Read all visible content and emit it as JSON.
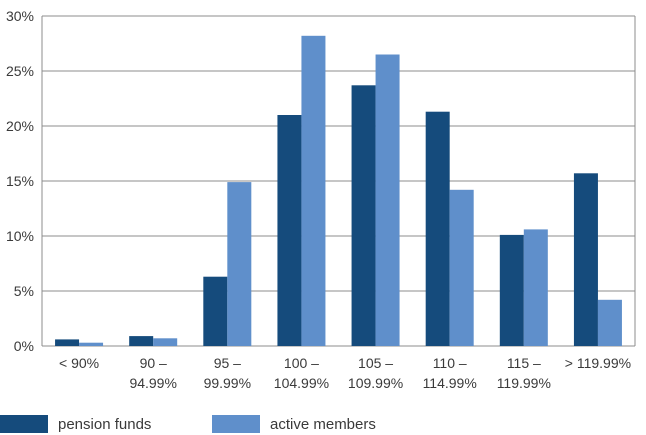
{
  "chart_data": {
    "type": "bar",
    "categories": [
      "< 90%",
      "90 –\n94.99%",
      "95 –\n99.99%",
      "100 –\n104.99%",
      "105 –\n109.99%",
      "110 –\n114.99%",
      "115 –\n119.99%",
      "> 119.99%"
    ],
    "series": [
      {
        "name": "pension funds",
        "color": "#154b7c",
        "values": [
          0.6,
          0.9,
          6.3,
          21.0,
          23.7,
          21.3,
          10.1,
          15.7
        ]
      },
      {
        "name": "active members",
        "color": "#5f8fcb",
        "values": [
          0.3,
          0.7,
          14.9,
          28.2,
          26.5,
          14.2,
          10.6,
          4.2
        ]
      }
    ],
    "yticks": [
      "0%",
      "5%",
      "10%",
      "15%",
      "20%",
      "25%",
      "30%"
    ],
    "ylim": [
      0,
      30
    ],
    "grid": true,
    "legend_position": "bottom-left"
  }
}
